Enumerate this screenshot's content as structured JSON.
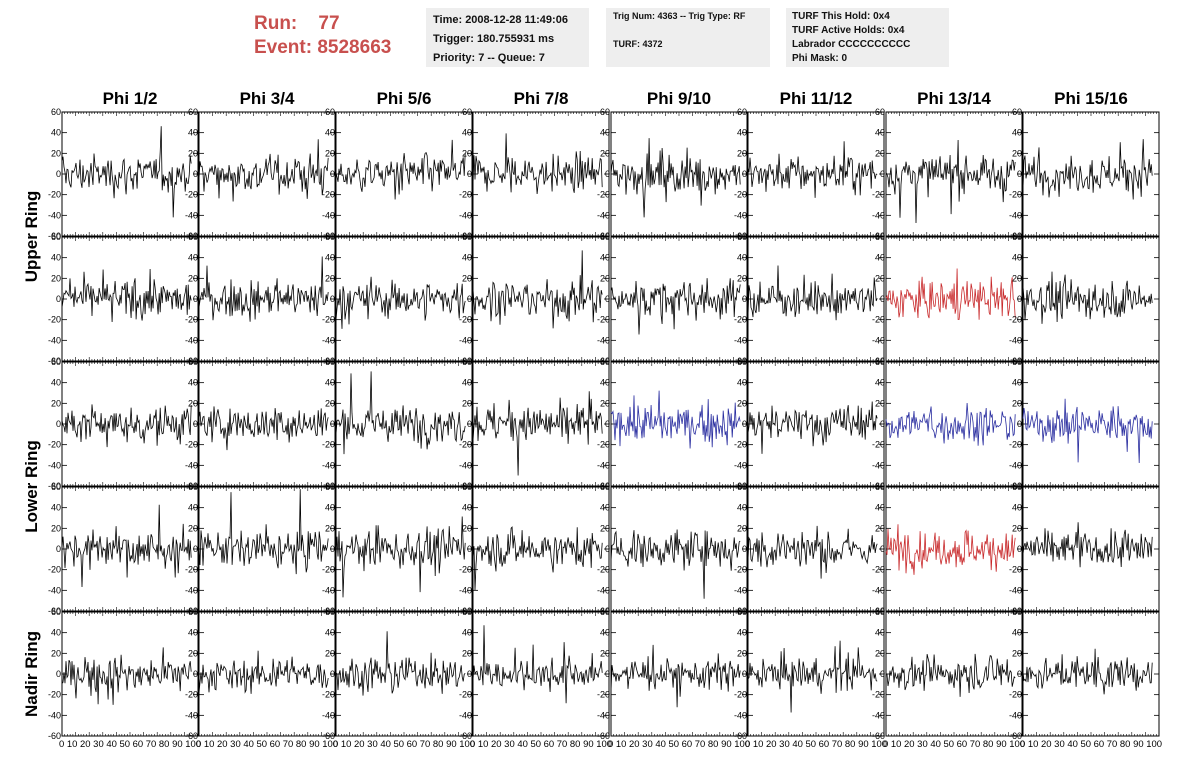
{
  "header": {
    "run_label": "Run:",
    "run_value": "77",
    "event_label": "Event:",
    "event_value": "8528663",
    "time_line": "Time: 2008-12-28 11:49:06",
    "trigger_line": "Trigger: 180.755931 ms",
    "priority_line": "Priority: 7 -- Queue: 7",
    "trig_line": "Trig Num: 4363 -- Trig Type: RF",
    "turf_line": "TURF: 4372",
    "turf_hold_line": "TURF This Hold: 0x4",
    "turf_active_line": "TURF Active Holds: 0x4",
    "labrador_line": "Labrador CCCCCCCCCC",
    "phi_mask_line": "Phi Mask: 0"
  },
  "colors": {
    "title": "#c8504e",
    "normal": "#000000",
    "red": "#c8282a",
    "blue": "#2a2ea0"
  },
  "chart_data": {
    "type": "line",
    "columns": [
      "Phi 1/2",
      "Phi 3/4",
      "Phi 5/6",
      "Phi 7/8",
      "Phi 9/10",
      "Phi 11/12",
      "Phi 13/14",
      "Phi 15/16"
    ],
    "ring_labels": [
      {
        "name": "Upper Ring",
        "rows": [
          0,
          1
        ]
      },
      {
        "name": "Lower Ring",
        "rows": [
          2,
          3
        ]
      },
      {
        "name": "Nadir Ring",
        "rows": [
          4
        ]
      }
    ],
    "xlim": [
      0,
      100
    ],
    "ylim": [
      -60,
      60
    ],
    "y_ticks": [
      -60,
      -40,
      -20,
      0,
      20,
      40,
      60
    ],
    "x_tick_labels": [
      "0",
      "10",
      "20",
      "30",
      "40",
      "50",
      "60",
      "70",
      "80",
      "90",
      "100"
    ],
    "panel_x_labels": "0 10 20 30 40 50 60 70 80 90 100",
    "waveform_samples": 130,
    "waveform_x_end": 95,
    "highlighted_panels": [
      {
        "row": 1,
        "col": 6,
        "color": "red"
      },
      {
        "row": 2,
        "col": 4,
        "color": "blue"
      },
      {
        "row": 2,
        "col": 6,
        "color": "blue"
      },
      {
        "row": 2,
        "col": 7,
        "color": "blue"
      },
      {
        "row": 3,
        "col": 6,
        "color": "red"
      }
    ],
    "amplitude_note": "noise waveforms, typical amplitude about ±25, peaks to about ±55"
  }
}
